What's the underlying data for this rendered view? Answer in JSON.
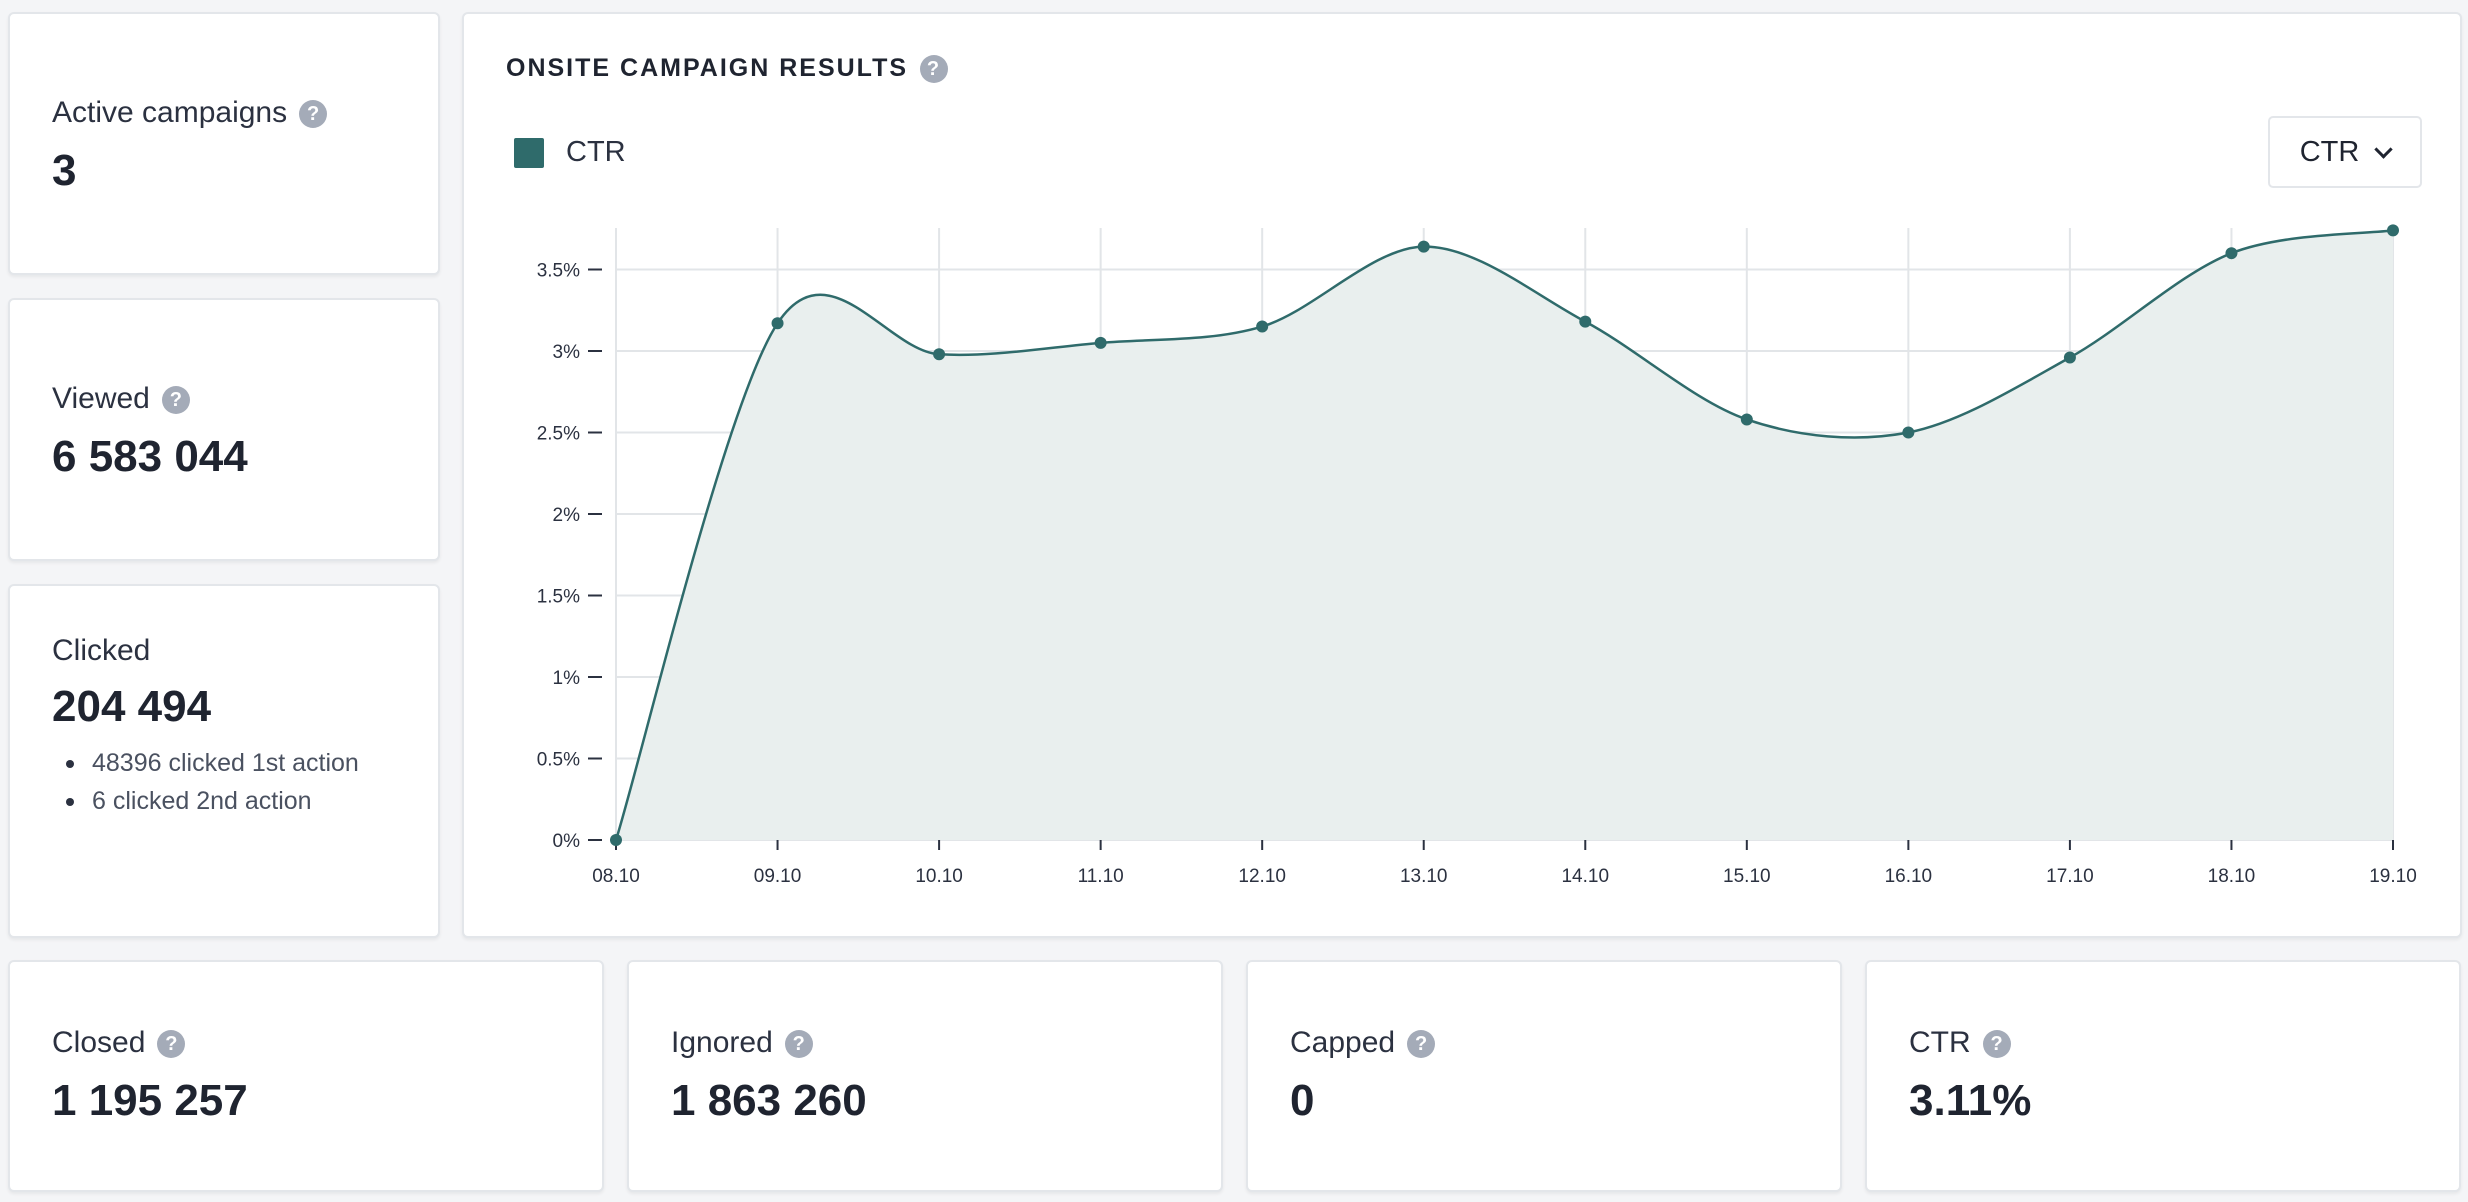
{
  "stats": {
    "active": {
      "label": "Active campaigns",
      "value": "3"
    },
    "viewed": {
      "label": "Viewed",
      "value": "6 583 044"
    },
    "clicked": {
      "label": "Clicked",
      "value": "204 494",
      "details": [
        "48396 clicked 1st action",
        "6 clicked 2nd action"
      ]
    },
    "closed": {
      "label": "Closed",
      "value": "1 195 257"
    },
    "ignored": {
      "label": "Ignored",
      "value": "1 863 260"
    },
    "capped": {
      "label": "Capped",
      "value": "0"
    },
    "ctr": {
      "label": "CTR",
      "value": "3.11%"
    }
  },
  "help_glyph": "?",
  "chart_panel": {
    "title": "ONSITE CAMPAIGN RESULTS",
    "legend_label": "CTR",
    "metric_select": {
      "selected": "CTR"
    }
  },
  "colors": {
    "series": "#2f6b6b",
    "area_fill": "#e9efee",
    "grid": "#e2e5e8",
    "tick_text": "#2b3140"
  },
  "chart_data": {
    "type": "area",
    "x": [
      "08.10",
      "09.10",
      "10.10",
      "11.10",
      "12.10",
      "13.10",
      "14.10",
      "15.10",
      "16.10",
      "17.10",
      "18.10",
      "19.10"
    ],
    "series": [
      {
        "name": "CTR",
        "values": [
          0,
          3.17,
          2.98,
          3.05,
          3.15,
          3.64,
          3.18,
          2.58,
          2.5,
          2.96,
          3.6,
          3.74
        ]
      }
    ],
    "y_ticks": [
      {
        "value": 0,
        "label": "0%"
      },
      {
        "value": 0.5,
        "label": "0.5%"
      },
      {
        "value": 1,
        "label": "1%"
      },
      {
        "value": 1.5,
        "label": "1.5%"
      },
      {
        "value": 2,
        "label": "2%"
      },
      {
        "value": 2.5,
        "label": "2.5%"
      },
      {
        "value": 3,
        "label": "3%"
      },
      {
        "value": 3.5,
        "label": "3.5%"
      }
    ],
    "ylim": [
      0,
      3.73
    ],
    "grid": true,
    "smooth": true,
    "legend": "top-left"
  }
}
